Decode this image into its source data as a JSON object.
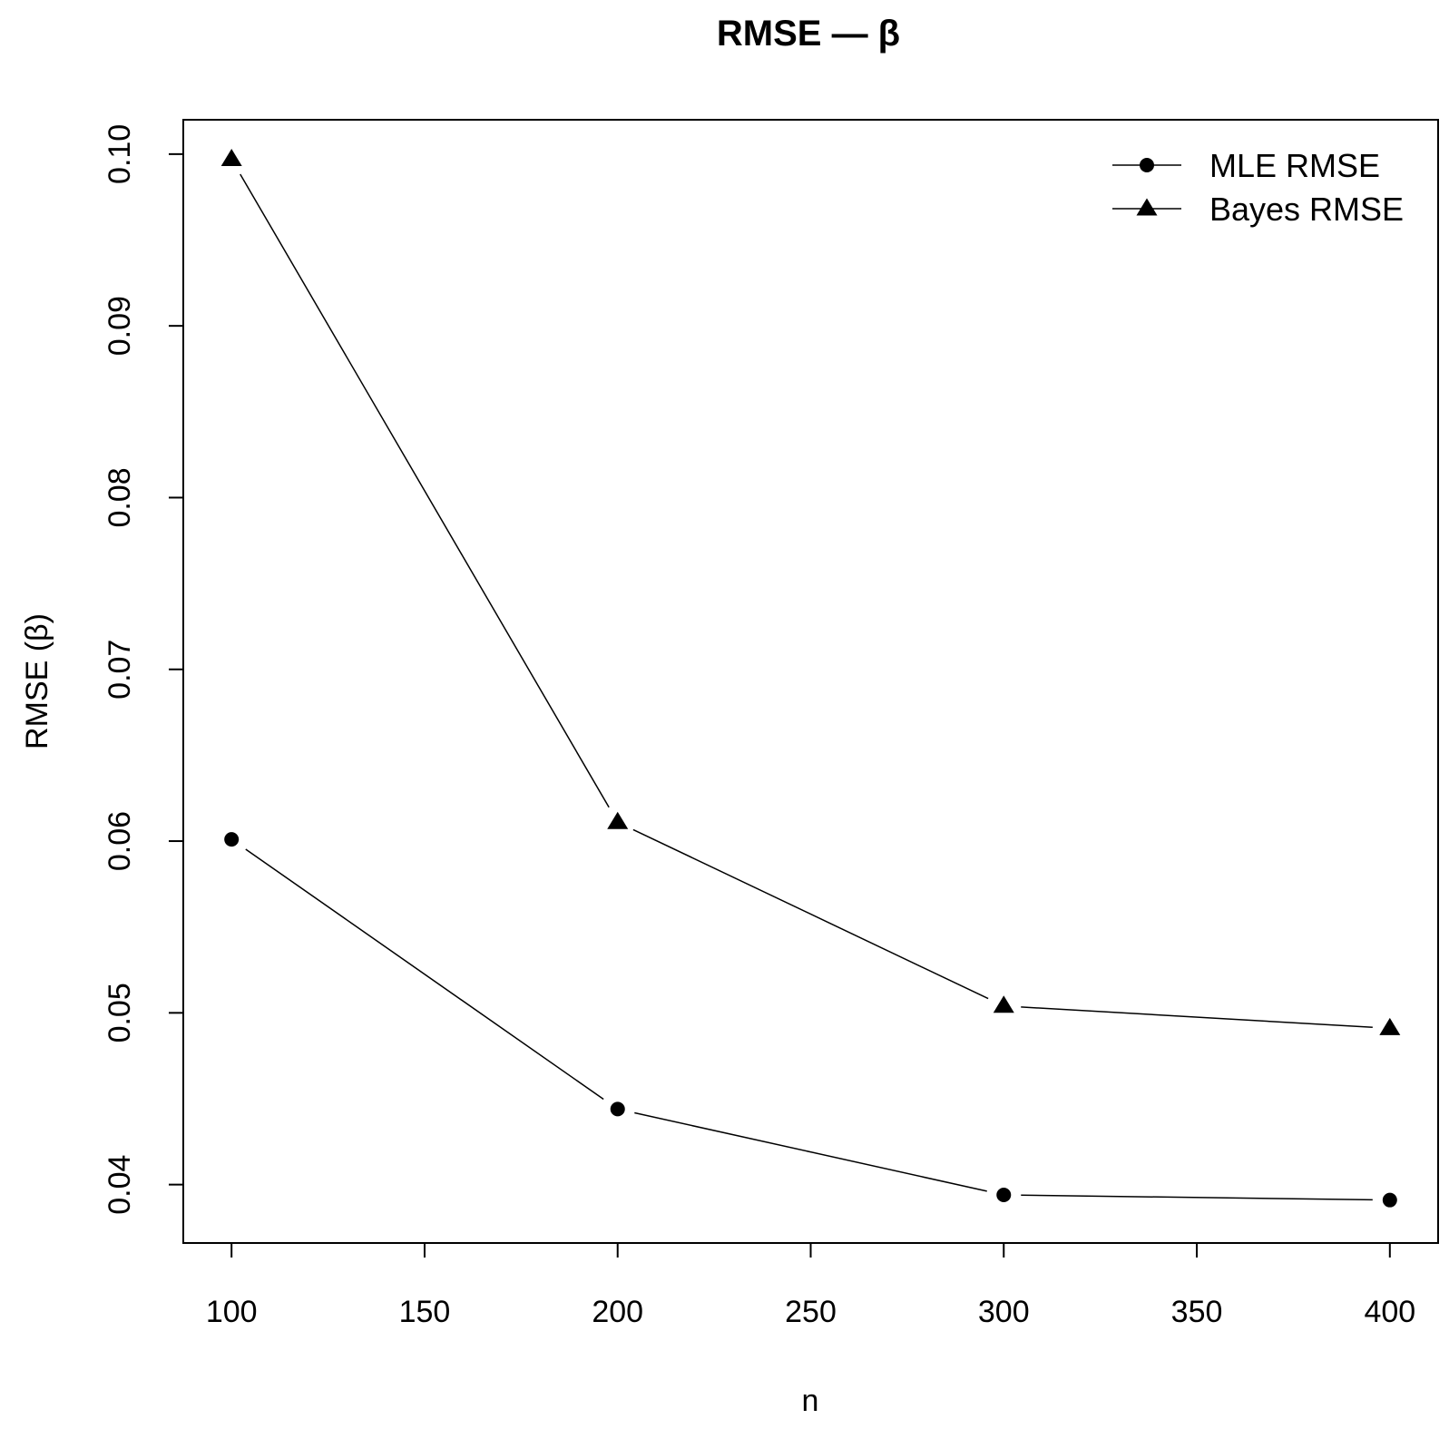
{
  "chart_data": {
    "type": "line",
    "title": "RMSE — β",
    "xlabel": "n",
    "ylabel": "RMSE (β)",
    "xlim": [
      87.5,
      412.5
    ],
    "ylim": [
      0.0366,
      0.102
    ],
    "xticks": [
      100,
      150,
      200,
      250,
      300,
      350,
      400
    ],
    "xtick_labels": [
      "100",
      "150",
      "200",
      "250",
      "300",
      "350",
      "400"
    ],
    "yticks": [
      0.04,
      0.05,
      0.06,
      0.07,
      0.08,
      0.09,
      0.1
    ],
    "ytick_labels": [
      "0.04",
      "0.05",
      "0.06",
      "0.07",
      "0.08",
      "0.09",
      "0.10"
    ],
    "grid": false,
    "legend_position": "top-right",
    "x": [
      100,
      200,
      300,
      400
    ],
    "series": [
      {
        "name": "MLE RMSE",
        "marker": "circle",
        "values": [
          0.0601,
          0.0444,
          0.0394,
          0.0391
        ]
      },
      {
        "name": "Bayes RMSE",
        "marker": "triangle",
        "values": [
          0.0997,
          0.0611,
          0.0504,
          0.0491
        ]
      }
    ]
  }
}
